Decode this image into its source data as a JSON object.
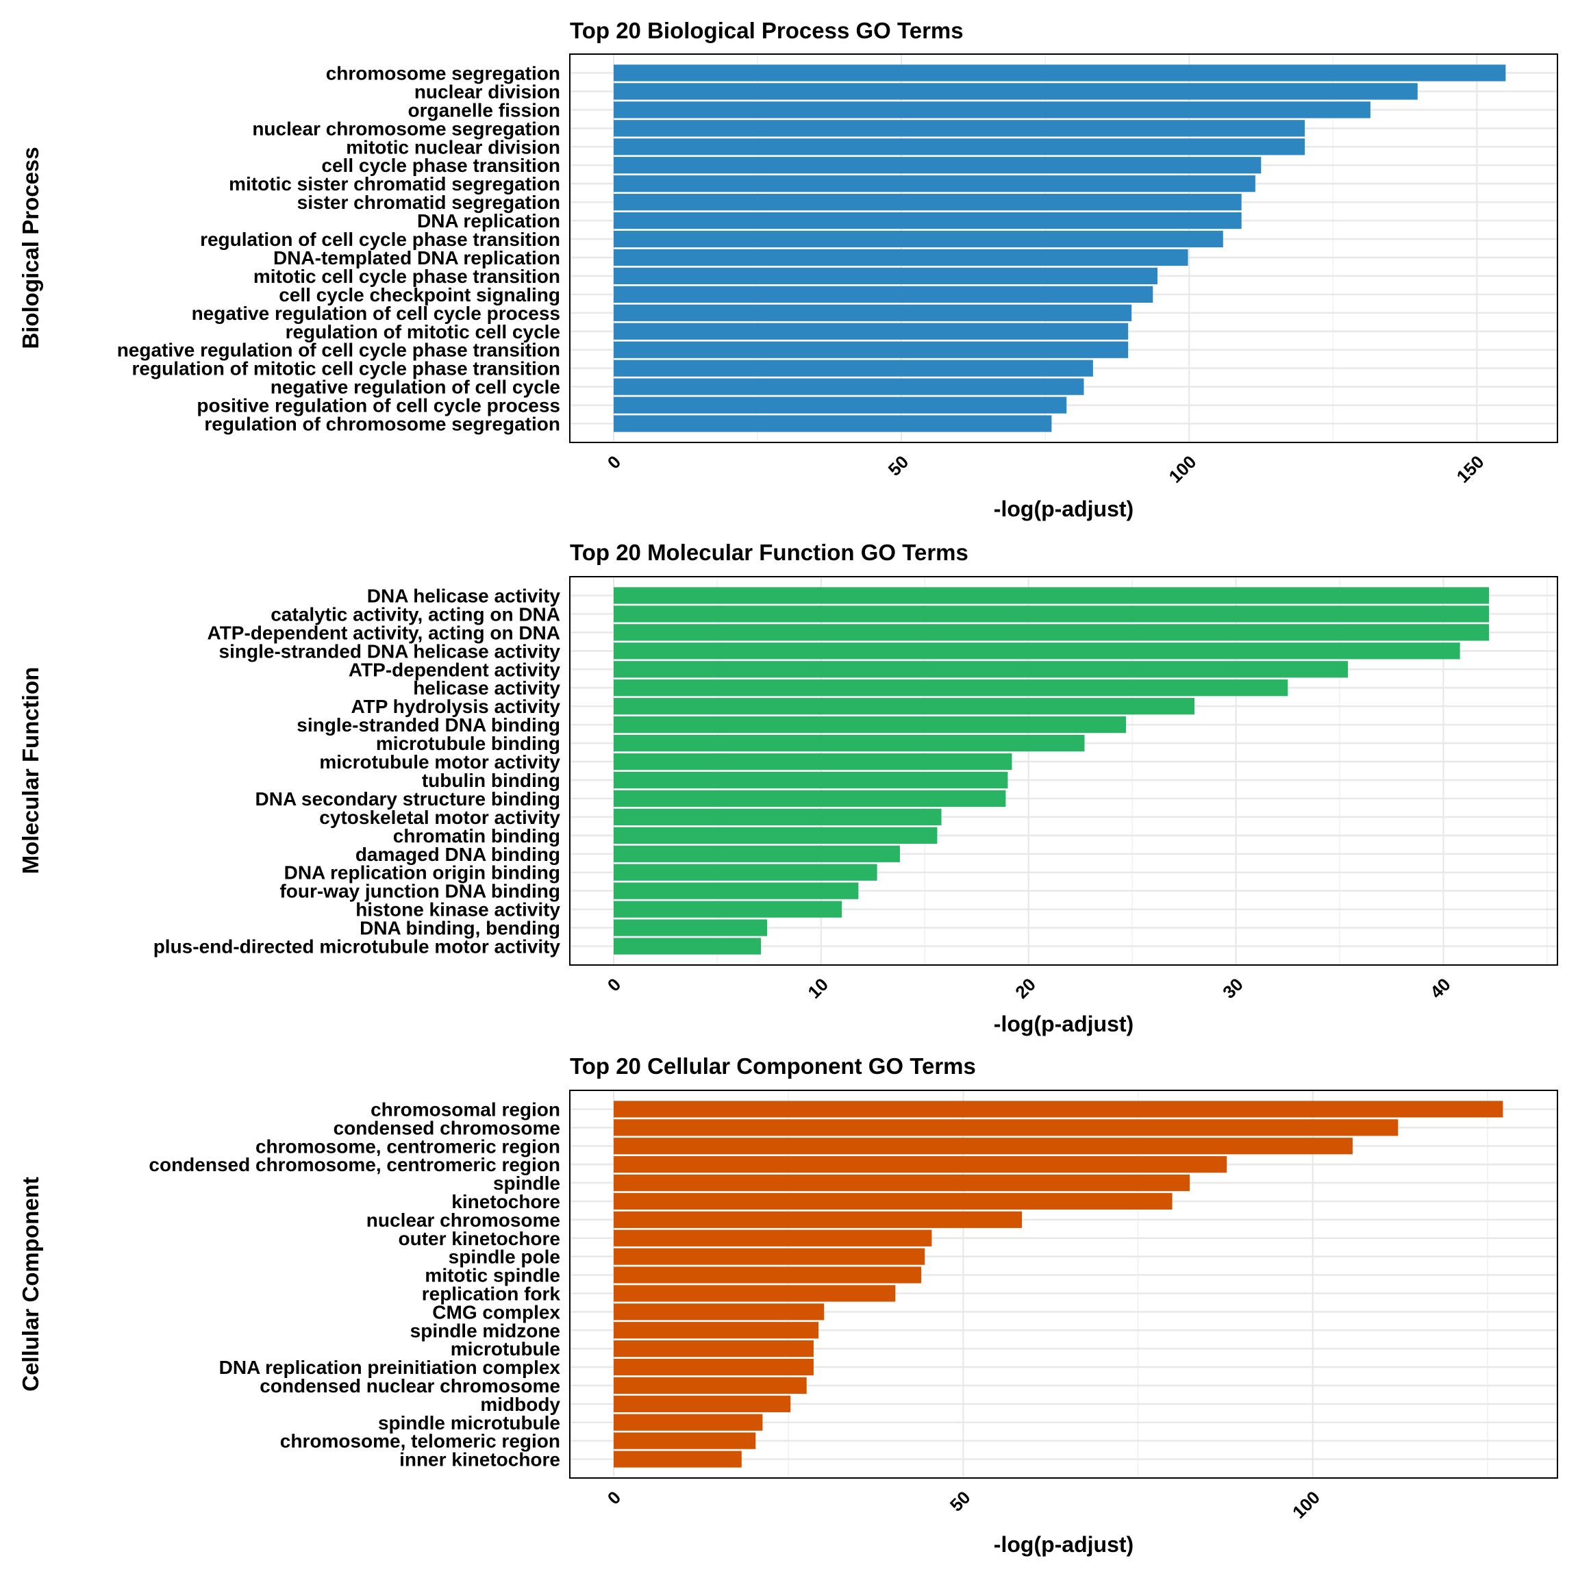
{
  "chart_data": [
    {
      "type": "bar",
      "orientation": "horizontal",
      "title": "Top 20 Biological Process GO Terms",
      "xlabel": "-log(p-adjust)",
      "ylabel": "Biological Process",
      "color": "#2E86C1",
      "xlim": [
        0,
        164
      ],
      "xticks": [
        0,
        50,
        100,
        150
      ],
      "grid": true,
      "categories": [
        "chromosome segregation",
        "nuclear division",
        "organelle fission",
        "nuclear chromosome segregation",
        "mitotic nuclear division",
        "cell cycle phase transition",
        "mitotic sister chromatid segregation",
        "sister chromatid segregation",
        "DNA replication",
        "regulation of cell cycle phase transition",
        "DNA-templated DNA replication",
        "mitotic cell cycle phase transition",
        "cell cycle checkpoint signaling",
        "negative regulation of cell cycle process",
        "regulation of mitotic cell cycle",
        "negative regulation of cell cycle phase transition",
        "regulation of mitotic cell cycle phase transition",
        "negative regulation of cell cycle",
        "positive regulation of cell cycle process",
        "regulation of chromosome segregation"
      ],
      "values": [
        155.0,
        139.7,
        131.5,
        120.1,
        120.1,
        112.5,
        111.5,
        109.1,
        109.1,
        105.9,
        99.8,
        94.5,
        93.7,
        90.0,
        89.4,
        89.4,
        83.3,
        81.7,
        78.7,
        76.1
      ]
    },
    {
      "type": "bar",
      "orientation": "horizontal",
      "title": "Top 20 Molecular Function GO Terms",
      "xlabel": "-log(p-adjust)",
      "ylabel": "Molecular Function",
      "color": "#28B463",
      "xlim": [
        0,
        45.5
      ],
      "xticks": [
        0,
        10,
        20,
        30,
        40
      ],
      "grid": true,
      "categories": [
        "DNA helicase activity",
        "catalytic activity, acting on DNA",
        "ATP-dependent activity, acting on DNA",
        "single-stranded DNA helicase activity",
        "ATP-dependent activity",
        "helicase activity",
        "ATP hydrolysis activity",
        "single-stranded DNA binding",
        "microtubule binding",
        "microtubule motor activity",
        "tubulin binding",
        "DNA secondary structure binding",
        "cytoskeletal motor activity",
        "chromatin binding",
        "damaged DNA binding",
        "DNA replication origin binding",
        "four-way junction DNA binding",
        "histone kinase activity",
        "DNA binding, bending",
        "plus-end-directed microtubule motor activity"
      ],
      "values": [
        42.2,
        42.2,
        42.2,
        40.8,
        35.4,
        32.5,
        28.0,
        24.7,
        22.7,
        19.2,
        19.0,
        18.9,
        15.8,
        15.6,
        13.8,
        12.7,
        11.8,
        11.0,
        7.4,
        7.1
      ]
    },
    {
      "type": "bar",
      "orientation": "horizontal",
      "title": "Top 20 Cellular Component GO Terms",
      "xlabel": "-log(p-adjust)",
      "ylabel": "Cellular Component",
      "color": "#D35400",
      "xlim": [
        0,
        135
      ],
      "xticks": [
        0,
        50,
        100
      ],
      "grid": true,
      "categories": [
        "chromosomal region",
        "condensed chromosome",
        "chromosome, centromeric region",
        "condensed chromosome, centromeric region",
        "spindle",
        "kinetochore",
        "nuclear chromosome",
        "outer kinetochore",
        "spindle pole",
        "mitotic spindle",
        "replication fork",
        "CMG complex",
        "spindle midzone",
        "microtubule",
        "DNA replication preinitiation complex",
        "condensed nuclear chromosome",
        "midbody",
        "spindle microtubule",
        "chromosome, telomeric region",
        "inner kinetochore"
      ],
      "values": [
        127.2,
        112.2,
        105.7,
        87.7,
        82.4,
        79.9,
        58.4,
        45.5,
        44.5,
        44.0,
        40.3,
        30.1,
        29.3,
        28.6,
        28.6,
        27.6,
        25.3,
        21.3,
        20.3,
        18.3
      ]
    }
  ]
}
